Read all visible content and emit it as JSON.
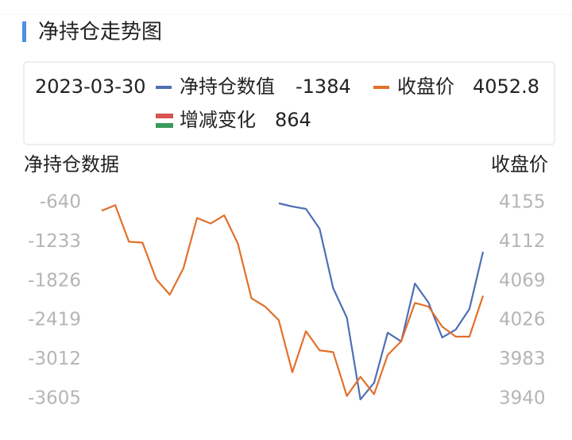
{
  "chart_data": {
    "type": "line",
    "title": "净持仓走势图",
    "selected_date": "2023-03-30",
    "y_label": "净持仓数据",
    "y2_label": "收盘价",
    "categories": [
      null,
      null,
      null,
      null,
      null,
      null,
      null,
      null,
      null,
      null,
      null,
      null,
      null,
      null,
      null,
      null,
      null,
      null,
      null,
      null,
      null,
      null,
      null,
      null,
      null,
      null,
      null,
      null,
      null
    ],
    "series": [
      {
        "name": "净持仓数值",
        "color": "#4f6fb5",
        "axis": "y",
        "values": [
          null,
          null,
          null,
          null,
          null,
          null,
          null,
          null,
          null,
          null,
          null,
          null,
          null,
          -652,
          -700,
          -736,
          -1036,
          -1936,
          -2380,
          -3616,
          -3364,
          -2608,
          -2740,
          -1864,
          -2152,
          -2680,
          -2560,
          -2248,
          -1384
        ]
      },
      {
        "name": "收盘价",
        "color": "#e2702b",
        "axis": "y2",
        "values": [
          4146,
          4152,
          4112,
          4111,
          4071,
          4054,
          4083,
          4138,
          4132,
          4141,
          4110,
          4050,
          4041,
          4026,
          3969,
          4014,
          3993,
          3991,
          3943,
          3964,
          3945,
          3988,
          4003,
          4045,
          4041,
          4019,
          4008,
          4008,
          4052.8
        ]
      }
    ],
    "change": {
      "name": "增减变化",
      "value": 864,
      "color": "#c9303a",
      "icon_colors": [
        "#d9534f",
        "#ffffff",
        "#3a9a5b"
      ]
    },
    "ylim": [
      -640,
      -3605
    ],
    "yticks": [
      -640,
      -1233,
      -1826,
      -2419,
      -3012,
      -3605
    ],
    "y2lim": [
      4155,
      3940
    ],
    "y2ticks": [
      4155,
      4112,
      4069,
      4026,
      3983,
      3940
    ]
  }
}
